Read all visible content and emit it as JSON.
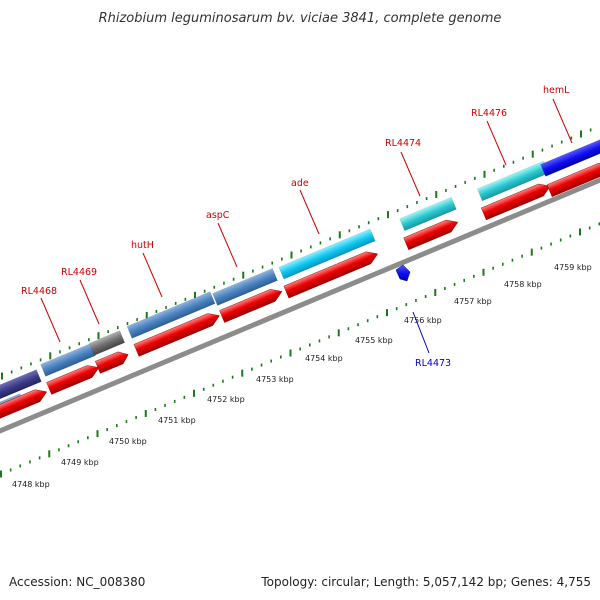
{
  "title": "Rhizobium leguminosarum bv. viciae 3841, complete genome",
  "footer": {
    "accession": "Accession: NC_008380",
    "summary": "Topology: circular; Length: 5,057,142 bp; Genes: 4,755"
  },
  "colors": {
    "forward_label": "#cc0000",
    "reverse_label": "#0000cc",
    "tick": "#1a7a1a",
    "backbone": "#8c8c8c",
    "cds": "#ee0000"
  },
  "kbp_labels": [
    "4748 kbp",
    "4749 kbp",
    "4750 kbp",
    "4751 kbp",
    "4752 kbp",
    "4753 kbp",
    "4754 kbp",
    "4755 kbp",
    "4756 kbp",
    "4757 kbp",
    "4758 kbp",
    "4759 kbp"
  ],
  "gene_labels": [
    {
      "text": "RL4468",
      "strand": "forward"
    },
    {
      "text": "RL4469",
      "strand": "forward"
    },
    {
      "text": "hutH",
      "strand": "forward"
    },
    {
      "text": "aspC",
      "strand": "forward"
    },
    {
      "text": "ade",
      "strand": "forward"
    },
    {
      "text": "RL4474",
      "strand": "forward"
    },
    {
      "text": "RL4476",
      "strand": "forward"
    },
    {
      "text": "hemL",
      "strand": "forward"
    },
    {
      "text": "RL4473",
      "strand": "reverse"
    }
  ]
}
